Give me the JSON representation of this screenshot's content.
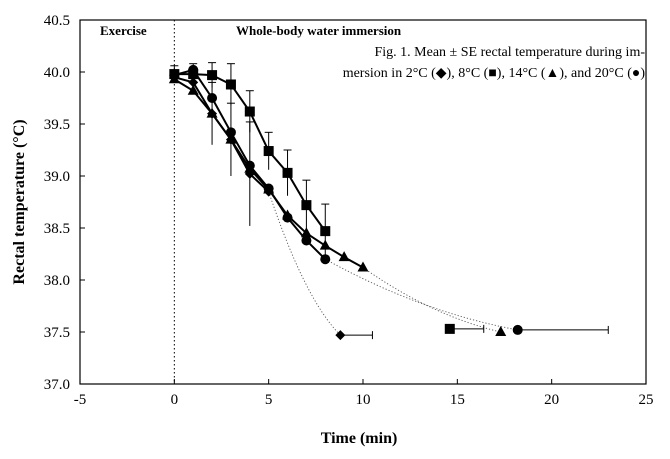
{
  "chart_data": {
    "type": "scatter",
    "title": "",
    "xlabel": "Time (min)",
    "ylabel": "Rectal temperature (°C)",
    "xlim": [
      -5,
      25
    ],
    "ylim": [
      37.0,
      40.5
    ],
    "x_ticks": [
      "-5",
      "0",
      "5",
      "10",
      "15",
      "20",
      "25"
    ],
    "y_ticks": [
      "37.0",
      "37.5",
      "38.0",
      "38.5",
      "39.0",
      "39.5",
      "40.0",
      "40.5"
    ],
    "annotations": {
      "exercise": "Exercise",
      "immersion": "Whole-body water immersion",
      "caption_line1": "Fig. 1. Mean ± SE rectal temperature during im-",
      "caption_line2": "mersion in 2°C (◆), 8°C (■), 14°C (▲), and 20°C (●)"
    },
    "series": [
      {
        "name": "2°C",
        "marker": "diamond",
        "connected_to_final": true,
        "x": [
          0,
          1,
          2,
          3,
          4,
          5
        ],
        "y": [
          39.95,
          39.9,
          39.6,
          39.35,
          39.02,
          38.85
        ],
        "yerr": [
          0,
          0,
          0.3,
          0.35,
          0.5,
          0
        ],
        "final": {
          "x": 8.8,
          "y": 37.47,
          "xerr": 1.7
        }
      },
      {
        "name": "8°C",
        "marker": "square",
        "connected_to_final": false,
        "x": [
          0,
          1,
          2,
          3,
          4,
          5,
          6,
          7,
          8
        ],
        "y": [
          39.98,
          39.98,
          39.97,
          39.88,
          39.62,
          39.24,
          39.03,
          38.72,
          38.47
        ],
        "yerr": [
          0.08,
          0.1,
          0.12,
          0.2,
          0.2,
          0.18,
          0.22,
          0.24,
          0.26
        ],
        "final": {
          "x": 14.6,
          "y": 37.53,
          "xerr": 1.8
        }
      },
      {
        "name": "14°C",
        "marker": "triangle",
        "connected_to_final": true,
        "x": [
          0,
          1,
          2,
          3,
          4,
          5,
          6,
          7,
          8,
          9,
          10
        ],
        "y": [
          39.93,
          39.82,
          39.6,
          39.35,
          39.07,
          38.87,
          38.62,
          38.45,
          38.33,
          38.22,
          38.12
        ],
        "yerr": [
          0,
          0,
          0,
          0,
          0,
          0,
          0,
          0,
          0,
          0,
          0
        ],
        "final": {
          "x": 17.3,
          "y": 37.5,
          "xerr": 0
        }
      },
      {
        "name": "20°C",
        "marker": "circle",
        "connected_to_final": true,
        "x": [
          0,
          1,
          2,
          3,
          4,
          5,
          6,
          7,
          8
        ],
        "y": [
          39.97,
          40.02,
          39.75,
          39.42,
          39.1,
          38.88,
          38.6,
          38.38,
          38.2
        ],
        "yerr": [
          0,
          0,
          0,
          0,
          0,
          0,
          0,
          0,
          0
        ],
        "final": {
          "x": 18.2,
          "y": 37.52,
          "xerr": 4.8
        }
      }
    ]
  }
}
